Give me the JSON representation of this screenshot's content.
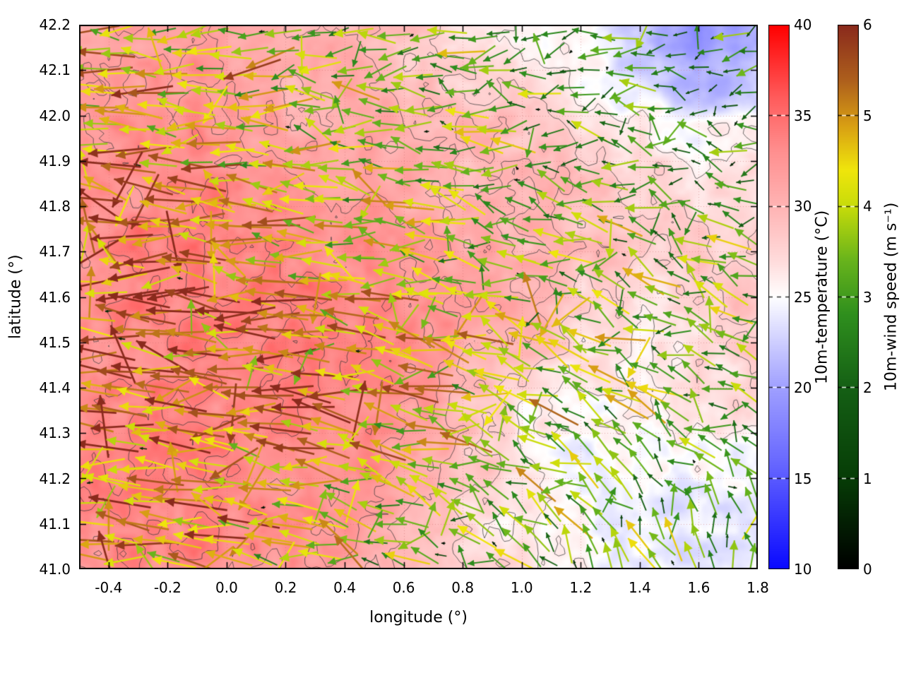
{
  "chart_data": {
    "type": "heatmap",
    "title": "",
    "xlabel": "longitude (°)",
    "ylabel": "latitude (°)",
    "x_range": [
      -0.5,
      1.8
    ],
    "y_range": [
      41.0,
      42.2
    ],
    "x_ticks": [
      -0.4,
      -0.2,
      0.0,
      0.2,
      0.4,
      0.6,
      0.8,
      1.0,
      1.2,
      1.4,
      1.6,
      1.8
    ],
    "y_ticks": [
      41.0,
      41.1,
      41.2,
      41.3,
      41.4,
      41.5,
      41.6,
      41.7,
      41.8,
      41.9,
      42.0,
      42.1,
      42.2
    ],
    "grid": "dotted",
    "legend_position": "none",
    "temperature_field": {
      "label": "10m-temperature (°C)",
      "range": [
        10,
        40
      ],
      "ticks": [
        10,
        15,
        20,
        25,
        30,
        35,
        40
      ],
      "colormap": [
        [
          10,
          "#0a0aff"
        ],
        [
          16,
          "#6a6aff"
        ],
        [
          20,
          "#a0a0ff"
        ],
        [
          23,
          "#d8d8ff"
        ],
        [
          25,
          "#ffffff"
        ],
        [
          27,
          "#ffdcdc"
        ],
        [
          30,
          "#ffb4b4"
        ],
        [
          33,
          "#ff9090"
        ],
        [
          36,
          "#ff5c5c"
        ],
        [
          40,
          "#ff0000"
        ]
      ],
      "grid_lon": [
        -0.5,
        -0.31,
        -0.12,
        0.07,
        0.26,
        0.45,
        0.64,
        0.83,
        1.02,
        1.21,
        1.4,
        1.6,
        1.8
      ],
      "grid_lat": [
        42.2,
        42.08,
        41.96,
        41.84,
        41.72,
        41.6,
        41.48,
        41.36,
        41.24,
        41.12,
        41.0
      ],
      "values": [
        [
          31,
          32,
          32,
          31,
          30,
          30,
          29,
          27,
          26,
          25,
          22,
          19,
          21
        ],
        [
          32,
          32,
          33,
          31,
          30,
          31,
          29,
          28,
          27,
          25,
          23,
          21,
          22
        ],
        [
          32,
          33,
          33,
          32,
          31,
          31,
          30,
          30,
          29,
          27,
          26,
          25,
          26
        ],
        [
          33,
          33,
          34,
          33,
          32,
          32,
          31,
          30,
          30,
          29,
          28,
          27,
          27
        ],
        [
          33,
          34,
          34,
          34,
          33,
          33,
          32,
          31,
          30,
          29,
          28,
          28,
          28
        ],
        [
          33,
          34,
          34,
          34,
          34,
          33,
          33,
          32,
          30,
          28,
          27,
          28,
          29
        ],
        [
          33,
          33,
          34,
          34,
          34,
          34,
          33,
          31,
          29,
          27,
          26,
          27,
          28
        ],
        [
          33,
          34,
          34,
          33,
          34,
          33,
          32,
          29,
          26,
          25,
          26,
          27,
          27
        ],
        [
          34,
          34,
          34,
          33,
          33,
          33,
          31,
          29,
          26,
          24,
          25,
          25,
          25
        ],
        [
          33,
          34,
          33,
          33,
          33,
          32,
          30,
          27,
          26,
          25,
          24,
          24,
          24
        ],
        [
          33,
          33,
          34,
          33,
          32,
          31,
          30,
          28,
          27,
          25,
          24,
          24,
          24
        ]
      ]
    },
    "wind_field": {
      "label": "10m-wind speed (m s⁻¹)",
      "range": [
        0,
        6
      ],
      "ticks": [
        0,
        1,
        2,
        3,
        4,
        5,
        6
      ],
      "colormap": [
        [
          0,
          "#000000"
        ],
        [
          1,
          "#073d07"
        ],
        [
          2,
          "#156015"
        ],
        [
          2.8,
          "#2f8f1e"
        ],
        [
          3.4,
          "#68b41c"
        ],
        [
          4.0,
          "#c8dc0a"
        ],
        [
          4.4,
          "#f0e60c"
        ],
        [
          4.9,
          "#d89e14"
        ],
        [
          5.4,
          "#ad5f1d"
        ],
        [
          6,
          "#8a2a1c"
        ]
      ],
      "u_grid": [
        [
          -4.5,
          -4,
          -4,
          -3.5,
          -3.5,
          -3,
          -3,
          -2.5,
          -2.5,
          -2.5,
          -2,
          -2
        ],
        [
          -4.5,
          -4.5,
          -4,
          -4,
          -3.5,
          -3,
          -3,
          -2.5,
          -2.5,
          -2,
          -2,
          -2
        ],
        [
          -5,
          -4.5,
          -4.5,
          -4,
          -3.5,
          -3.5,
          -3,
          -3,
          -2.5,
          -2.5,
          -2,
          -2
        ],
        [
          -5,
          -5,
          -4.5,
          -4.5,
          -4,
          -3.5,
          -3.5,
          -3,
          -3,
          -2.5,
          -2.5,
          -2.5
        ],
        [
          -5.5,
          -5,
          -5,
          -4.5,
          -4.5,
          -4,
          -3.5,
          -3.5,
          -3,
          -3,
          -2.5,
          -2.5
        ],
        [
          -5.5,
          -5.5,
          -5,
          -5,
          -4.5,
          -4.5,
          -4,
          -3.5,
          -3.5,
          -3,
          -3,
          -2.5
        ],
        [
          -5.5,
          -5,
          -5,
          -5,
          -4.5,
          -4.5,
          -4,
          -3.5,
          -3,
          -3,
          -2.5,
          -2.5
        ],
        [
          -5,
          -5,
          -5,
          -4.5,
          -4.5,
          -4,
          -3.5,
          -3,
          -2.5,
          -2,
          -2,
          -1.5
        ],
        [
          -5,
          -5,
          -4.5,
          -4.5,
          -4,
          -3.5,
          -3,
          -2.5,
          -2,
          -1.5,
          -1,
          -0.8
        ],
        [
          -5,
          -4.5,
          -4.5,
          -4,
          -3.5,
          -3,
          -2.5,
          -2,
          -1.5,
          -1,
          -0.5,
          -0.3
        ]
      ],
      "v_grid": [
        [
          0,
          0,
          -0.5,
          -0.5,
          0,
          0,
          -0.5,
          -0.5,
          -0.5,
          0,
          -0.5,
          -0.5
        ],
        [
          0,
          0.3,
          0,
          -0.3,
          0,
          0,
          0,
          -0.3,
          0,
          0,
          0,
          0
        ],
        [
          0.3,
          0,
          0.3,
          0,
          0.3,
          0,
          0.3,
          0,
          0.3,
          0.5,
          0.5,
          0.3
        ],
        [
          0,
          0.3,
          0,
          0.5,
          0.3,
          0.5,
          0.5,
          0.5,
          1,
          1,
          0.5,
          0.5
        ],
        [
          0.3,
          0,
          0.5,
          0.3,
          0.5,
          0.5,
          1,
          1,
          1,
          1.5,
          1,
          0.5
        ],
        [
          0,
          0.5,
          0.3,
          0.5,
          0.5,
          1,
          1,
          1.5,
          1.5,
          1.5,
          1,
          1
        ],
        [
          0.5,
          0.3,
          0.5,
          0.5,
          1,
          1,
          1.5,
          1.5,
          1.5,
          1.5,
          1.5,
          1
        ],
        [
          0.3,
          0.5,
          0.5,
          0.5,
          1,
          1,
          1.5,
          1.5,
          2,
          2,
          2,
          1.5
        ],
        [
          0,
          0.3,
          0.5,
          0.5,
          1,
          1,
          1.5,
          2,
          2.5,
          2.5,
          2.5,
          2.5
        ],
        [
          0,
          0.3,
          0.3,
          0.5,
          0.5,
          1,
          1.5,
          2,
          2.5,
          3,
          3,
          3
        ]
      ]
    },
    "contour_levels": [
      26,
      28,
      30,
      32,
      34
    ]
  }
}
